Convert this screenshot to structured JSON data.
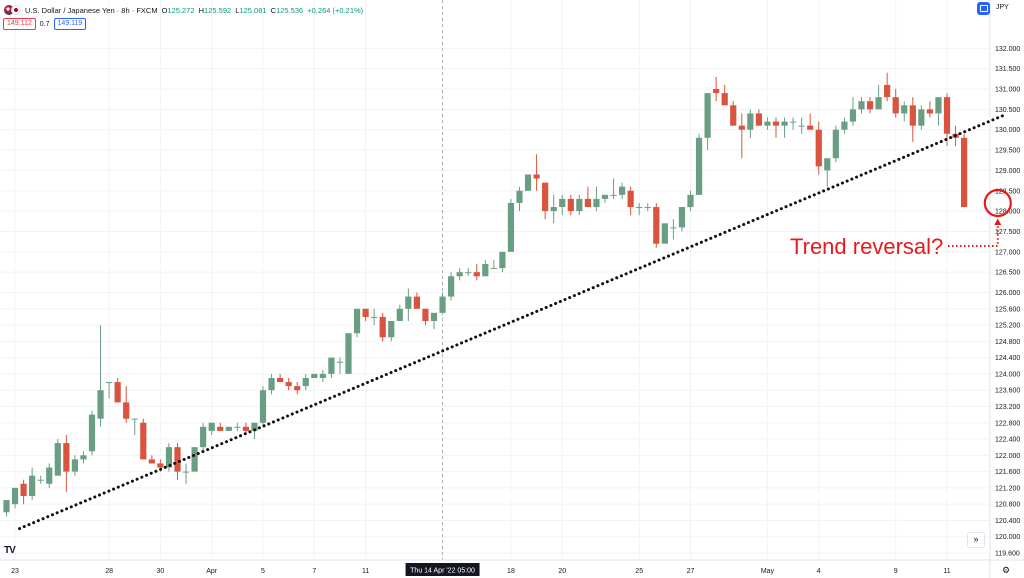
{
  "header": {
    "symbol": "U.S. Dollar / Japanese Yen · 8h · FXCM",
    "open_label": "O",
    "open": "125.272",
    "high_label": "H",
    "high": "125.592",
    "low_label": "L",
    "low": "125.081",
    "close_label": "C",
    "close": "125.536",
    "change": "+0.264 (+0.21%)",
    "sell_price": "149.112",
    "spread": "0.7",
    "buy_price": "149.119",
    "currency": "JPY"
  },
  "colors": {
    "up": "#6a9e82",
    "down": "#d9533f",
    "trend": "#111111",
    "annotation": "#e8191c",
    "grid": "#f2f3f5"
  },
  "icons": {
    "currency_button": "currency-box-icon",
    "logo": "tradingview-logo-icon",
    "scroll": "scroll-to-latest-icon",
    "settings": "gear-icon"
  },
  "scroll_glyph": "»",
  "logo_text": "TV",
  "gear_glyph": "⚙",
  "chart_data": {
    "type": "candlestick",
    "ylim": [
      119.4,
      132.3
    ],
    "y_ticks": [
      "132.000",
      "131.500",
      "131.000",
      "130.500",
      "130.000",
      "129.500",
      "129.000",
      "128.500",
      "128.000",
      "127.500",
      "127.000",
      "126.500",
      "126.000",
      "125.600",
      "125.200",
      "124.800",
      "124.400",
      "124.000",
      "123.600",
      "123.200",
      "122.800",
      "122.400",
      "122.000",
      "121.600",
      "121.200",
      "120.800",
      "120.400",
      "120.000",
      "119.600"
    ],
    "x_ticks": [
      {
        "label": "23",
        "index": 1
      },
      {
        "label": "28",
        "index": 12
      },
      {
        "label": "30",
        "index": 18
      },
      {
        "label": "Apr",
        "index": 24
      },
      {
        "label": "5",
        "index": 30
      },
      {
        "label": "7",
        "index": 36
      },
      {
        "label": "11",
        "index": 42
      },
      {
        "label": "Thu 14 Apr '22  05:00",
        "index": 51
      },
      {
        "label": "18",
        "index": 59
      },
      {
        "label": "20",
        "index": 65
      },
      {
        "label": "25",
        "index": 74
      },
      {
        "label": "27",
        "index": 80
      },
      {
        "label": "May",
        "index": 89
      },
      {
        "label": "4",
        "index": 95
      },
      {
        "label": "9",
        "index": 104
      },
      {
        "label": "11",
        "index": 110
      }
    ],
    "crosshair_index": 51,
    "candles": [
      [
        120.6,
        120.9,
        120.5,
        120.9
      ],
      [
        120.8,
        121.2,
        120.7,
        121.2
      ],
      [
        121.3,
        121.4,
        120.8,
        121.0
      ],
      [
        121.0,
        121.7,
        120.9,
        121.5
      ],
      [
        121.4,
        121.5,
        121.3,
        121.4
      ],
      [
        121.3,
        121.8,
        121.2,
        121.7
      ],
      [
        121.5,
        122.4,
        121.5,
        122.3
      ],
      [
        122.3,
        122.5,
        121.1,
        121.6
      ],
      [
        121.6,
        122.0,
        121.5,
        121.9
      ],
      [
        121.9,
        122.1,
        121.8,
        122.0
      ],
      [
        122.1,
        123.1,
        122.0,
        123.0
      ],
      [
        122.9,
        125.2,
        122.7,
        123.6
      ],
      [
        123.8,
        123.8,
        123.4,
        123.8
      ],
      [
        123.8,
        123.9,
        123.3,
        123.3
      ],
      [
        123.3,
        123.7,
        122.8,
        122.9
      ],
      [
        122.9,
        122.9,
        122.5,
        122.9
      ],
      [
        122.8,
        122.9,
        121.9,
        121.9
      ],
      [
        121.9,
        122.0,
        121.8,
        121.8
      ],
      [
        121.8,
        121.9,
        121.6,
        121.7
      ],
      [
        121.7,
        122.3,
        121.6,
        122.2
      ],
      [
        122.2,
        122.3,
        121.4,
        121.6
      ],
      [
        121.6,
        121.8,
        121.3,
        121.6
      ],
      [
        121.6,
        122.2,
        121.6,
        122.2
      ],
      [
        122.2,
        122.8,
        122.1,
        122.7
      ],
      [
        122.6,
        122.8,
        122.5,
        122.8
      ],
      [
        122.7,
        122.8,
        122.6,
        122.6
      ],
      [
        122.6,
        122.7,
        122.6,
        122.7
      ],
      [
        122.7,
        122.8,
        122.6,
        122.7
      ],
      [
        122.7,
        122.8,
        122.5,
        122.6
      ],
      [
        122.6,
        122.8,
        122.4,
        122.8
      ],
      [
        122.8,
        123.7,
        122.7,
        123.6
      ],
      [
        123.6,
        124.0,
        123.5,
        123.9
      ],
      [
        123.9,
        124.0,
        123.8,
        123.8
      ],
      [
        123.8,
        123.9,
        123.6,
        123.7
      ],
      [
        123.7,
        123.8,
        123.5,
        123.6
      ],
      [
        123.7,
        124.0,
        123.6,
        123.9
      ],
      [
        123.9,
        124.0,
        123.9,
        124.0
      ],
      [
        123.9,
        124.1,
        123.8,
        124.0
      ],
      [
        124.0,
        124.4,
        123.9,
        124.4
      ],
      [
        124.3,
        124.4,
        124.0,
        124.3
      ],
      [
        124.0,
        125.0,
        124.0,
        125.0
      ],
      [
        125.0,
        125.6,
        124.9,
        125.6
      ],
      [
        125.6,
        125.6,
        125.3,
        125.4
      ],
      [
        125.4,
        125.6,
        125.2,
        125.4
      ],
      [
        125.4,
        125.5,
        124.8,
        124.9
      ],
      [
        124.9,
        125.3,
        124.8,
        125.3
      ],
      [
        125.3,
        125.7,
        125.3,
        125.6
      ],
      [
        125.6,
        126.1,
        125.3,
        125.9
      ],
      [
        125.9,
        126.0,
        125.6,
        125.6
      ],
      [
        125.6,
        125.6,
        125.2,
        125.3
      ],
      [
        125.3,
        125.5,
        125.1,
        125.5
      ],
      [
        125.5,
        126.0,
        125.5,
        125.9
      ],
      [
        125.9,
        126.5,
        125.8,
        126.4
      ],
      [
        126.4,
        126.6,
        126.3,
        126.5
      ],
      [
        126.5,
        126.6,
        126.4,
        126.5
      ],
      [
        126.5,
        126.7,
        126.3,
        126.4
      ],
      [
        126.4,
        126.8,
        126.4,
        126.7
      ],
      [
        126.6,
        126.8,
        126.6,
        126.6
      ],
      [
        126.6,
        127.0,
        126.5,
        127.0
      ],
      [
        127.0,
        128.3,
        127.0,
        128.2
      ],
      [
        128.2,
        128.6,
        128.0,
        128.5
      ],
      [
        128.5,
        128.9,
        128.5,
        128.9
      ],
      [
        128.9,
        129.4,
        128.5,
        128.8
      ],
      [
        128.7,
        128.7,
        127.8,
        128.0
      ],
      [
        128.0,
        128.4,
        127.7,
        128.1
      ],
      [
        128.1,
        128.4,
        127.9,
        128.3
      ],
      [
        128.3,
        128.4,
        127.9,
        128.0
      ],
      [
        128.0,
        128.4,
        127.9,
        128.3
      ],
      [
        128.3,
        128.6,
        128.2,
        128.1
      ],
      [
        128.1,
        128.6,
        128.0,
        128.3
      ],
      [
        128.3,
        128.4,
        128.2,
        128.4
      ],
      [
        128.4,
        128.8,
        128.3,
        128.4
      ],
      [
        128.4,
        128.7,
        128.3,
        128.6
      ],
      [
        128.5,
        128.6,
        127.9,
        128.1
      ],
      [
        128.1,
        128.2,
        127.9,
        128.1
      ],
      [
        128.1,
        128.2,
        128.0,
        128.1
      ],
      [
        128.1,
        128.2,
        127.1,
        127.2
      ],
      [
        127.2,
        127.7,
        127.2,
        127.7
      ],
      [
        127.6,
        127.8,
        127.3,
        127.6
      ],
      [
        127.6,
        128.1,
        127.5,
        128.1
      ],
      [
        128.1,
        128.5,
        128.0,
        128.4
      ],
      [
        128.4,
        129.9,
        128.4,
        129.8
      ],
      [
        129.8,
        130.9,
        129.5,
        130.9
      ],
      [
        131.0,
        131.3,
        130.7,
        130.9
      ],
      [
        130.9,
        131.1,
        130.6,
        130.6
      ],
      [
        130.6,
        130.7,
        130.1,
        130.1
      ],
      [
        130.1,
        130.4,
        129.3,
        130.0
      ],
      [
        130.0,
        130.5,
        129.8,
        130.4
      ],
      [
        130.4,
        130.5,
        130.1,
        130.1
      ],
      [
        130.1,
        130.3,
        130.0,
        130.2
      ],
      [
        130.2,
        130.3,
        129.8,
        130.1
      ],
      [
        130.1,
        130.3,
        129.8,
        130.2
      ],
      [
        130.2,
        130.3,
        130.0,
        130.2
      ],
      [
        130.1,
        130.3,
        129.9,
        130.1
      ],
      [
        130.1,
        130.4,
        130.0,
        130.0
      ],
      [
        130.0,
        130.2,
        128.9,
        129.1
      ],
      [
        129.0,
        129.2,
        128.6,
        129.3
      ],
      [
        129.3,
        130.1,
        129.2,
        130.0
      ],
      [
        130.0,
        130.3,
        129.9,
        130.2
      ],
      [
        130.2,
        130.8,
        130.1,
        130.5
      ],
      [
        130.5,
        130.8,
        130.4,
        130.7
      ],
      [
        130.7,
        130.8,
        130.4,
        130.5
      ],
      [
        130.5,
        131.1,
        130.5,
        130.8
      ],
      [
        131.1,
        131.4,
        130.7,
        130.8
      ],
      [
        130.8,
        131.0,
        130.3,
        130.4
      ],
      [
        130.4,
        130.7,
        130.2,
        130.6
      ],
      [
        130.6,
        130.8,
        129.7,
        130.1
      ],
      [
        130.1,
        130.6,
        130.0,
        130.5
      ],
      [
        130.5,
        130.7,
        130.3,
        130.4
      ],
      [
        130.4,
        130.8,
        130.1,
        130.8
      ],
      [
        130.8,
        130.9,
        129.6,
        129.9
      ],
      [
        129.9,
        130.1,
        129.6,
        129.8
      ],
      [
        129.8,
        129.9,
        128.1,
        128.1
      ]
    ],
    "trendline": {
      "from_index": 0,
      "from_price": 120.2,
      "to_index": 116,
      "to_price": 130.35
    },
    "annotation": {
      "text": "Trend reversal?",
      "circle_index": 116,
      "circle_price": 128.2
    }
  }
}
